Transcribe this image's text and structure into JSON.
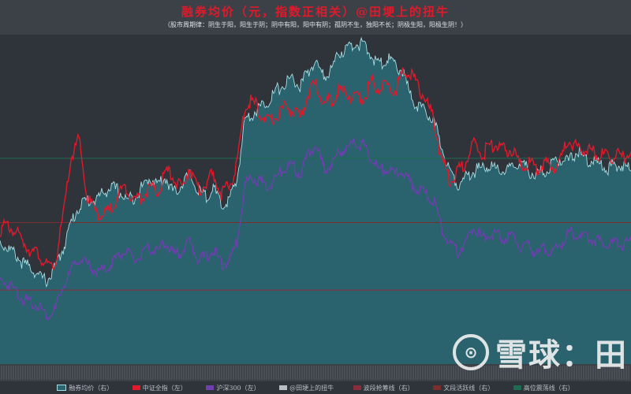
{
  "header": {
    "title": "融券均价（元，指数正相关）@田埂上的扭牛",
    "subtitle": "（股市周期律：阴生于阳，阳生于阴；阴中有阳，阳中有阴；孤阴不生，独阳不长；阴极生阳，阳极生阴！）"
  },
  "legend": [
    {
      "label": "融券均价（右）",
      "color": "#7ec9d2"
    },
    {
      "label": "中证全指（左）",
      "color": "#e0192b"
    },
    {
      "label": "沪深300（左）",
      "color": "#6f3fb0"
    },
    {
      "label": "@田埂上的扭牛",
      "color": "#b9bec6"
    },
    {
      "label": "波段抢筹线（右）",
      "color": "#8a2d3a"
    },
    {
      "label": "文段活跃线（右）",
      "color": "#7a2e2e"
    },
    {
      "label": "高位震荡线（右）",
      "color": "#1f6b52"
    }
  ],
  "watermark": {
    "brand": "雪球：田",
    "logo_glyph": "⊙"
  },
  "colors": {
    "area_fill": "#2a6670",
    "area_line": "#a9dde4",
    "zsqz": "#e0192b",
    "hs300": "#6f3fb0",
    "hline_high": "#1f6b52",
    "hline_mid": "#7a2e2e",
    "hline_low": "#8a2d3a"
  },
  "chart_data": {
    "type": "area",
    "title": "融券均价（元，指数正相关）@田埂上的扭牛",
    "ylim_norm": [
      0,
      100
    ],
    "reference_lines": {
      "high_oscillation": 64,
      "active": 44,
      "grab": 23
    },
    "x": [
      0,
      10,
      20,
      30,
      40,
      50,
      60,
      70,
      80,
      90,
      100,
      110,
      120,
      130,
      140,
      150,
      160,
      170,
      180,
      190,
      200,
      210,
      220,
      230,
      240,
      250,
      260,
      270,
      280,
      290,
      300,
      310,
      320,
      330,
      340,
      350,
      360,
      370,
      380,
      390,
      400,
      410,
      420,
      430,
      440,
      450,
      460,
      470,
      480,
      490,
      500,
      510,
      520,
      530,
      540,
      550,
      560,
      570,
      580,
      590,
      600,
      610,
      620,
      630,
      640,
      650,
      660,
      670,
      680,
      690,
      700,
      710,
      720,
      730,
      740,
      750,
      760,
      770,
      780,
      790,
      799
    ],
    "series": [
      {
        "name": "融券均价（右）",
        "values": [
          38,
          36,
          34,
          31,
          30,
          27,
          26,
          30,
          36,
          44,
          49,
          51,
          51,
          53,
          55,
          54,
          51,
          52,
          55,
          58,
          56,
          58,
          53,
          56,
          59,
          54,
          52,
          55,
          49,
          51,
          57,
          76,
          78,
          80,
          82,
          85,
          87,
          89,
          86,
          91,
          94,
          89,
          92,
          97,
          98,
          100,
          99,
          96,
          93,
          95,
          93,
          91,
          83,
          80,
          78,
          75,
          67,
          60,
          56,
          58,
          60,
          61,
          62,
          60,
          60,
          61,
          63,
          60,
          59,
          60,
          62,
          64,
          63,
          66,
          64,
          63,
          62,
          61,
          62,
          62,
          60
        ]
      },
      {
        "name": "中证全指（左）",
        "values": [
          42,
          43,
          41,
          38,
          35,
          34,
          30,
          31,
          46,
          64,
          70,
          52,
          48,
          46,
          48,
          53,
          55,
          51,
          52,
          55,
          53,
          60,
          58,
          54,
          62,
          54,
          56,
          59,
          53,
          55,
          62,
          80,
          82,
          78,
          75,
          77,
          80,
          79,
          76,
          84,
          87,
          81,
          82,
          85,
          84,
          83,
          82,
          88,
          86,
          87,
          85,
          90,
          91,
          86,
          82,
          75,
          63,
          57,
          60,
          63,
          69,
          65,
          68,
          68,
          66,
          67,
          61,
          63,
          60,
          63,
          61,
          64,
          70,
          67,
          67,
          66,
          65,
          64,
          65,
          64,
          66
        ]
      },
      {
        "name": "沪深300（左）",
        "values": [
          26,
          25,
          23,
          20,
          19,
          18,
          15,
          17,
          24,
          29,
          33,
          31,
          29,
          29,
          31,
          34,
          35,
          32,
          34,
          36,
          35,
          38,
          34,
          35,
          38,
          33,
          33,
          36,
          31,
          32,
          38,
          56,
          58,
          57,
          55,
          58,
          61,
          62,
          59,
          65,
          68,
          61,
          62,
          66,
          67,
          69,
          68,
          64,
          60,
          61,
          59,
          60,
          56,
          54,
          53,
          50,
          42,
          37,
          35,
          38,
          43,
          39,
          41,
          40,
          39,
          40,
          36,
          37,
          34,
          36,
          35,
          37,
          41,
          40,
          40,
          39,
          38,
          37,
          38,
          37,
          38
        ]
      }
    ]
  }
}
